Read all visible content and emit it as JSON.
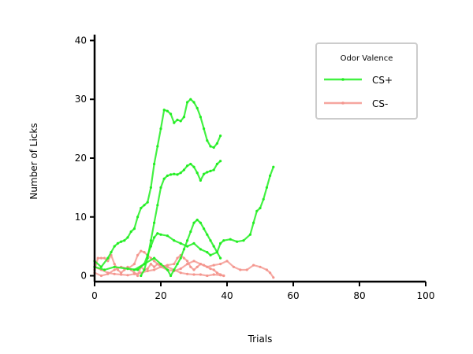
{
  "chart_data": {
    "type": "line",
    "title": "",
    "xlabel": "Trials",
    "ylabel": "Number of Licks",
    "xlim": [
      0,
      100
    ],
    "ylim": [
      -1,
      41
    ],
    "xticks": [
      0,
      20,
      40,
      60,
      80,
      100
    ],
    "yticks": [
      0,
      10,
      20,
      30,
      40
    ],
    "legend": {
      "title": "Odor Valence",
      "placement": "top-right",
      "entries": [
        {
          "label": "CS+",
          "color": "#22ee22"
        },
        {
          "label": "CS-",
          "color": "#f4968e"
        }
      ]
    },
    "series": [
      {
        "group": "CS+",
        "color": "#22ee22",
        "points": [
          [
            0,
            2.5
          ],
          [
            2,
            1.5
          ],
          [
            4,
            3
          ],
          [
            5,
            4
          ],
          [
            6,
            5
          ],
          [
            7,
            5.5
          ],
          [
            8,
            5.8
          ],
          [
            9,
            6
          ],
          [
            10,
            6.5
          ],
          [
            11,
            7.5
          ],
          [
            12,
            8
          ],
          [
            13,
            10
          ],
          [
            14,
            11.5
          ],
          [
            15,
            12
          ],
          [
            16,
            12.5
          ],
          [
            17,
            15
          ],
          [
            18,
            19
          ],
          [
            19,
            22
          ],
          [
            20,
            25
          ],
          [
            21,
            28.2
          ],
          [
            22,
            28
          ],
          [
            23,
            27.5
          ],
          [
            24,
            26
          ],
          [
            25,
            26.5
          ],
          [
            26,
            26.3
          ],
          [
            27,
            27
          ],
          [
            28,
            29.5
          ],
          [
            29,
            30
          ],
          [
            30,
            29.5
          ],
          [
            31,
            28.5
          ],
          [
            32,
            27
          ],
          [
            33,
            25
          ],
          [
            34,
            23
          ],
          [
            35,
            22
          ],
          [
            36,
            21.8
          ],
          [
            37,
            22.5
          ],
          [
            38,
            23.8
          ]
        ]
      },
      {
        "group": "CS+",
        "color": "#22ee22",
        "points": [
          [
            14,
            0
          ],
          [
            15,
            1
          ],
          [
            16,
            3
          ],
          [
            17,
            6
          ],
          [
            18,
            9
          ],
          [
            19,
            12
          ],
          [
            20,
            15
          ],
          [
            21,
            16.5
          ],
          [
            22,
            17
          ],
          [
            23,
            17.2
          ],
          [
            24,
            17.3
          ],
          [
            25,
            17.2
          ],
          [
            26,
            17.5
          ],
          [
            27,
            18
          ],
          [
            28,
            18.7
          ],
          [
            29,
            19
          ],
          [
            30,
            18.5
          ],
          [
            31,
            17.5
          ],
          [
            32,
            16.2
          ],
          [
            33,
            17.3
          ],
          [
            34,
            17.6
          ],
          [
            35,
            17.8
          ],
          [
            36,
            18
          ],
          [
            37,
            19
          ],
          [
            38,
            19.5
          ]
        ]
      },
      {
        "group": "CS+",
        "color": "#22ee22",
        "points": [
          [
            0,
            1.5
          ],
          [
            3,
            1
          ],
          [
            6,
            1.5
          ],
          [
            10,
            1.2
          ],
          [
            13,
            1
          ],
          [
            15,
            2
          ],
          [
            16,
            3.5
          ],
          [
            17,
            5
          ],
          [
            18,
            6.5
          ],
          [
            19,
            7.2
          ],
          [
            20,
            7
          ],
          [
            22,
            6.8
          ],
          [
            24,
            6
          ],
          [
            26,
            5.5
          ],
          [
            28,
            5
          ],
          [
            30,
            5.5
          ],
          [
            32,
            4.5
          ],
          [
            34,
            4
          ],
          [
            35,
            3.5
          ],
          [
            37,
            4
          ],
          [
            38,
            5.5
          ],
          [
            39,
            6
          ],
          [
            41,
            6.2
          ],
          [
            43,
            5.8
          ],
          [
            45,
            6
          ],
          [
            47,
            7
          ],
          [
            48,
            9
          ],
          [
            49,
            11
          ],
          [
            50,
            11.5
          ],
          [
            51,
            13
          ],
          [
            52,
            15
          ],
          [
            53,
            17
          ],
          [
            54,
            18.5
          ]
        ]
      },
      {
        "group": "CS+",
        "color": "#22ee22",
        "points": [
          [
            12,
            1
          ],
          [
            15,
            2
          ],
          [
            18,
            3
          ],
          [
            20,
            2
          ],
          [
            22,
            1
          ],
          [
            23,
            0
          ],
          [
            24,
            1
          ],
          [
            25,
            2
          ],
          [
            26,
            3
          ],
          [
            27,
            4.5
          ],
          [
            28,
            6
          ],
          [
            29,
            7.5
          ],
          [
            30,
            9
          ],
          [
            31,
            9.5
          ],
          [
            32,
            9
          ],
          [
            33,
            8
          ],
          [
            34,
            7
          ],
          [
            35,
            6
          ],
          [
            36,
            5
          ],
          [
            37,
            4
          ],
          [
            38,
            3
          ]
        ]
      },
      {
        "group": "CS-",
        "color": "#f4968e",
        "points": [
          [
            0,
            1
          ],
          [
            1,
            3
          ],
          [
            2,
            3
          ],
          [
            3,
            3
          ],
          [
            4,
            2.5
          ],
          [
            5,
            3.5
          ],
          [
            6,
            2
          ],
          [
            7,
            1
          ],
          [
            8,
            0.5
          ],
          [
            9,
            1
          ],
          [
            10,
            1.5
          ],
          [
            11,
            1
          ],
          [
            12,
            0.5
          ],
          [
            13,
            0
          ],
          [
            14,
            1.5
          ],
          [
            15,
            1
          ],
          [
            16,
            1.2
          ],
          [
            17,
            2
          ],
          [
            18,
            1.5
          ],
          [
            19,
            2
          ],
          [
            20,
            1.8
          ],
          [
            22,
            1.5
          ],
          [
            24,
            1
          ],
          [
            26,
            0.5
          ],
          [
            28,
            0.3
          ],
          [
            30,
            0.2
          ],
          [
            32,
            0.2
          ],
          [
            34,
            0
          ],
          [
            36,
            0.2
          ],
          [
            38,
            0.1
          ],
          [
            39,
            0
          ]
        ]
      },
      {
        "group": "CS-",
        "color": "#f4968e",
        "points": [
          [
            0,
            0.5
          ],
          [
            2,
            0
          ],
          [
            4,
            0.3
          ],
          [
            6,
            1
          ],
          [
            8,
            1.5
          ],
          [
            10,
            1.2
          ],
          [
            12,
            2
          ],
          [
            13,
            3.5
          ],
          [
            14,
            4.2
          ],
          [
            15,
            4
          ],
          [
            16,
            3.5
          ],
          [
            17,
            3
          ],
          [
            18,
            2.5
          ],
          [
            19,
            2
          ],
          [
            20,
            1.5
          ],
          [
            22,
            1
          ],
          [
            24,
            0.8
          ],
          [
            26,
            1.2
          ],
          [
            28,
            2
          ],
          [
            30,
            2.5
          ],
          [
            32,
            2
          ],
          [
            34,
            1.5
          ],
          [
            36,
            1.8
          ],
          [
            38,
            2
          ],
          [
            40,
            2.5
          ],
          [
            42,
            1.5
          ],
          [
            44,
            1
          ],
          [
            46,
            1
          ],
          [
            48,
            1.8
          ],
          [
            50,
            1.5
          ],
          [
            52,
            1
          ],
          [
            53,
            0.5
          ],
          [
            54,
            -0.3
          ]
        ]
      },
      {
        "group": "CS-",
        "color": "#f4968e",
        "points": [
          [
            0,
            1.5
          ],
          [
            2,
            1
          ],
          [
            4,
            0.5
          ],
          [
            6,
            0.3
          ],
          [
            8,
            0.2
          ],
          [
            10,
            0.1
          ],
          [
            12,
            0.3
          ],
          [
            14,
            0.5
          ],
          [
            16,
            0.8
          ],
          [
            18,
            1
          ],
          [
            20,
            1.5
          ],
          [
            22,
            1.8
          ],
          [
            24,
            2
          ],
          [
            25,
            3
          ],
          [
            26,
            3.5
          ],
          [
            27,
            3
          ],
          [
            28,
            2.5
          ],
          [
            29,
            1.5
          ],
          [
            30,
            1
          ],
          [
            31,
            1.5
          ],
          [
            32,
            2
          ],
          [
            33,
            1.8
          ],
          [
            34,
            1.5
          ],
          [
            35,
            1.2
          ],
          [
            36,
            1
          ],
          [
            37,
            0.5
          ],
          [
            38,
            0.2
          ],
          [
            39,
            0
          ]
        ]
      }
    ]
  }
}
